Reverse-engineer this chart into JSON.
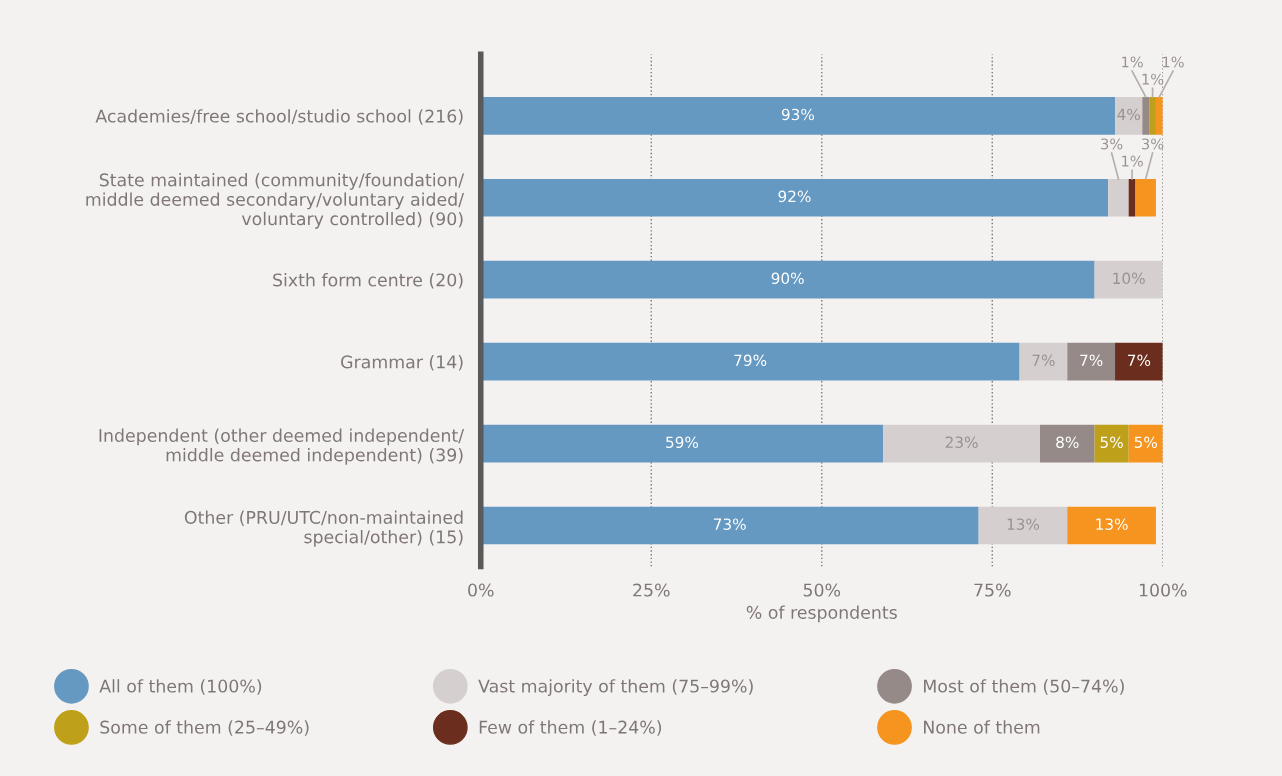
{
  "chart_data": {
    "type": "bar",
    "orientation": "horizontal",
    "stacked": true,
    "xlabel": "% of respondents",
    "categories": [
      "Academies/free school/studio school (216)",
      "State maintained (community/foundation/\nmiddle deemed secondary/voluntary aided/\nvoluntary controlled) (90)",
      "Sixth form centre (20)",
      "Grammar (14)",
      "Independent (other deemed independent/\nmiddle deemed independent) (39)",
      "Other (PRU/UTC/non-maintained\nspecial/other) (15)"
    ],
    "series": [
      {
        "name": "All of them (100%)",
        "color": "#6699c2",
        "values": [
          93,
          92,
          90,
          79,
          59,
          73
        ],
        "value_labels": [
          "93%",
          "92%",
          "90%",
          "79%",
          "59%",
          "73%"
        ]
      },
      {
        "name": "Vast majority of them (75–99%)",
        "color": "#d5d0cf",
        "values": [
          4,
          3,
          10,
          7,
          23,
          13
        ],
        "value_labels": [
          "4%",
          "3%",
          "10%",
          "7%",
          "23%",
          "13%"
        ]
      },
      {
        "name": "Most of them (50–74%)",
        "color": "#958a88",
        "values": [
          1,
          0,
          0,
          7,
          8,
          0
        ],
        "value_labels": [
          "1%",
          null,
          null,
          "7%",
          "8%",
          null
        ]
      },
      {
        "name": "Some of them (25–49%)",
        "color": "#bfa01a",
        "values": [
          1,
          0,
          0,
          0,
          5,
          0
        ],
        "value_labels": [
          "1%",
          null,
          null,
          null,
          "5%",
          null
        ]
      },
      {
        "name": "Few of them (1–24%)",
        "color": "#6b2e1e",
        "values": [
          0,
          1,
          0,
          7,
          0,
          0
        ],
        "value_labels": [
          null,
          "1%",
          null,
          "7%",
          null,
          null
        ]
      },
      {
        "name": "None of them",
        "color": "#f5941e",
        "values": [
          1,
          3,
          0,
          0,
          5,
          13
        ],
        "value_labels": [
          "1%",
          "3%",
          null,
          null,
          "5%",
          "13%"
        ]
      }
    ],
    "xlim": [
      0,
      100
    ],
    "xticks": [
      {
        "value": 0,
        "label": "0%"
      },
      {
        "value": 25,
        "label": "25%"
      },
      {
        "value": 50,
        "label": "50%"
      },
      {
        "value": 75,
        "label": "75%"
      },
      {
        "value": 100,
        "label": "100%"
      }
    ],
    "grid": "x",
    "legend": "bottom",
    "marker": "circle"
  }
}
